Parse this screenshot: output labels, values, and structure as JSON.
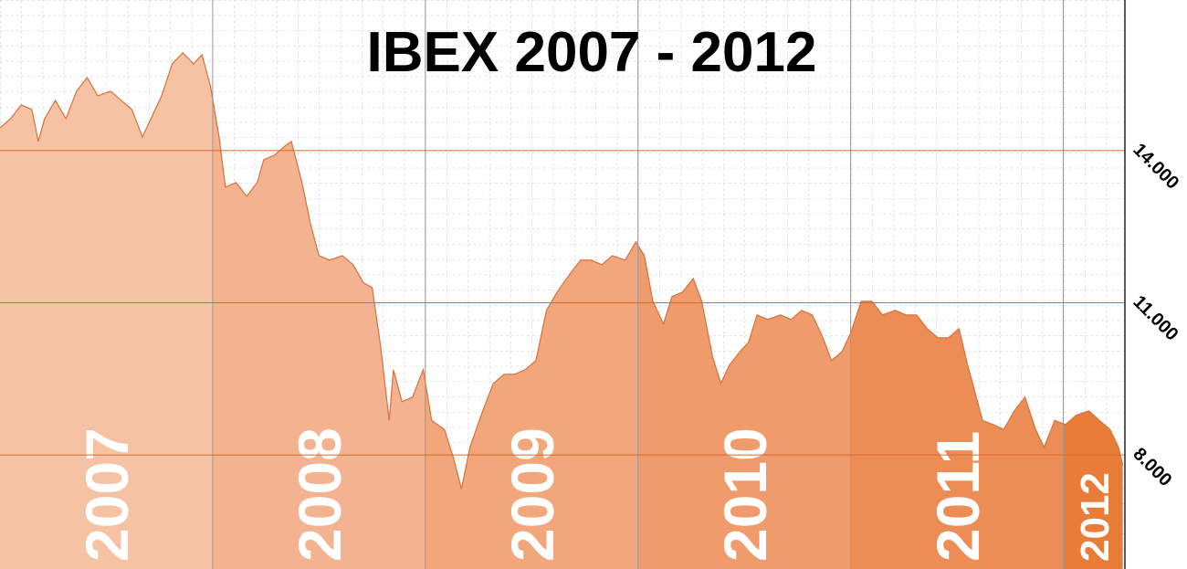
{
  "chart_data": {
    "type": "area",
    "title": "IBEX 2007 - 2012",
    "x": [
      2007.0,
      2007.05,
      2007.1,
      2007.15,
      2007.18,
      2007.21,
      2007.26,
      2007.31,
      2007.36,
      2007.41,
      2007.46,
      2007.52,
      2007.57,
      2007.62,
      2007.67,
      2007.7,
      2007.76,
      2007.81,
      2007.86,
      2007.91,
      2007.95,
      2007.99,
      2008.03,
      2008.06,
      2008.11,
      2008.16,
      2008.21,
      2008.24,
      2008.29,
      2008.34,
      2008.37,
      2008.42,
      2008.46,
      2008.5,
      2008.55,
      2008.61,
      2008.66,
      2008.71,
      2008.75,
      2008.79,
      2008.83,
      2008.85,
      2008.89,
      2008.94,
      2008.99,
      2009.03,
      2009.09,
      2009.13,
      2009.17,
      2009.21,
      2009.27,
      2009.32,
      2009.37,
      2009.42,
      2009.47,
      2009.52,
      2009.57,
      2009.62,
      2009.68,
      2009.73,
      2009.78,
      2009.83,
      2009.88,
      2009.94,
      2009.99,
      2010.03,
      2010.07,
      2010.12,
      2010.16,
      2010.21,
      2010.26,
      2010.3,
      2010.35,
      2010.39,
      2010.43,
      2010.48,
      2010.52,
      2010.56,
      2010.61,
      2010.67,
      2010.72,
      2010.77,
      2010.82,
      2010.87,
      2010.91,
      2010.96,
      2011.0,
      2011.05,
      2011.1,
      2011.15,
      2011.21,
      2011.26,
      2011.31,
      2011.36,
      2011.41,
      2011.46,
      2011.51,
      2011.55,
      2011.58,
      2011.62,
      2011.67,
      2011.72,
      2011.77,
      2011.82,
      2011.87,
      2011.91,
      2011.96,
      2012.01,
      2012.06,
      2012.12,
      2012.17,
      2012.22,
      2012.26,
      2012.28
    ],
    "values": [
      14450,
      14630,
      14900,
      14810,
      14180,
      14630,
      14990,
      14630,
      15170,
      15440,
      15080,
      15170,
      14990,
      14810,
      14270,
      14540,
      15080,
      15710,
      15930,
      15710,
      15890,
      15260,
      14270,
      13280,
      13370,
      13100,
      13370,
      13820,
      13910,
      14090,
      14180,
      13370,
      12560,
      11930,
      11840,
      11930,
      11750,
      11390,
      11300,
      10130,
      8680,
      9680,
      9050,
      9140,
      9680,
      8680,
      8500,
      7970,
      7330,
      8150,
      8870,
      9410,
      9590,
      9590,
      9680,
      9860,
      10850,
      11210,
      11570,
      11840,
      11840,
      11750,
      11930,
      11840,
      12200,
      11930,
      11030,
      10580,
      11120,
      11210,
      11480,
      11030,
      9950,
      9410,
      9770,
      10040,
      10220,
      10760,
      10670,
      10760,
      10670,
      10850,
      10760,
      10310,
      9860,
      10040,
      10400,
      11030,
      11030,
      10760,
      10850,
      10760,
      10760,
      10490,
      10310,
      10310,
      10490,
      9770,
      9320,
      8680,
      8600,
      8500,
      8870,
      9140,
      8500,
      8150,
      8680,
      8600,
      8780,
      8870,
      8680,
      8500,
      8150,
      7790
    ],
    "xlim": [
      2007,
      2012.29
    ],
    "xticks": [
      2007,
      2008,
      2009,
      2010,
      2011,
      2012
    ],
    "band_colors": [
      "#f5c2a3",
      "#f3b390",
      "#f1a67c",
      "#ef9b6b",
      "#ed8d56",
      "#ea7c3a"
    ],
    "line_color": "#d9703a",
    "ylim": [
      5750,
      16970
    ],
    "yticks": [
      {
        "value": 14000,
        "label": "14.000"
      },
      {
        "value": 11000,
        "label": "11.000"
      },
      {
        "value": 8000,
        "label": "8.000"
      }
    ],
    "grid_color": "#d46a2c"
  }
}
